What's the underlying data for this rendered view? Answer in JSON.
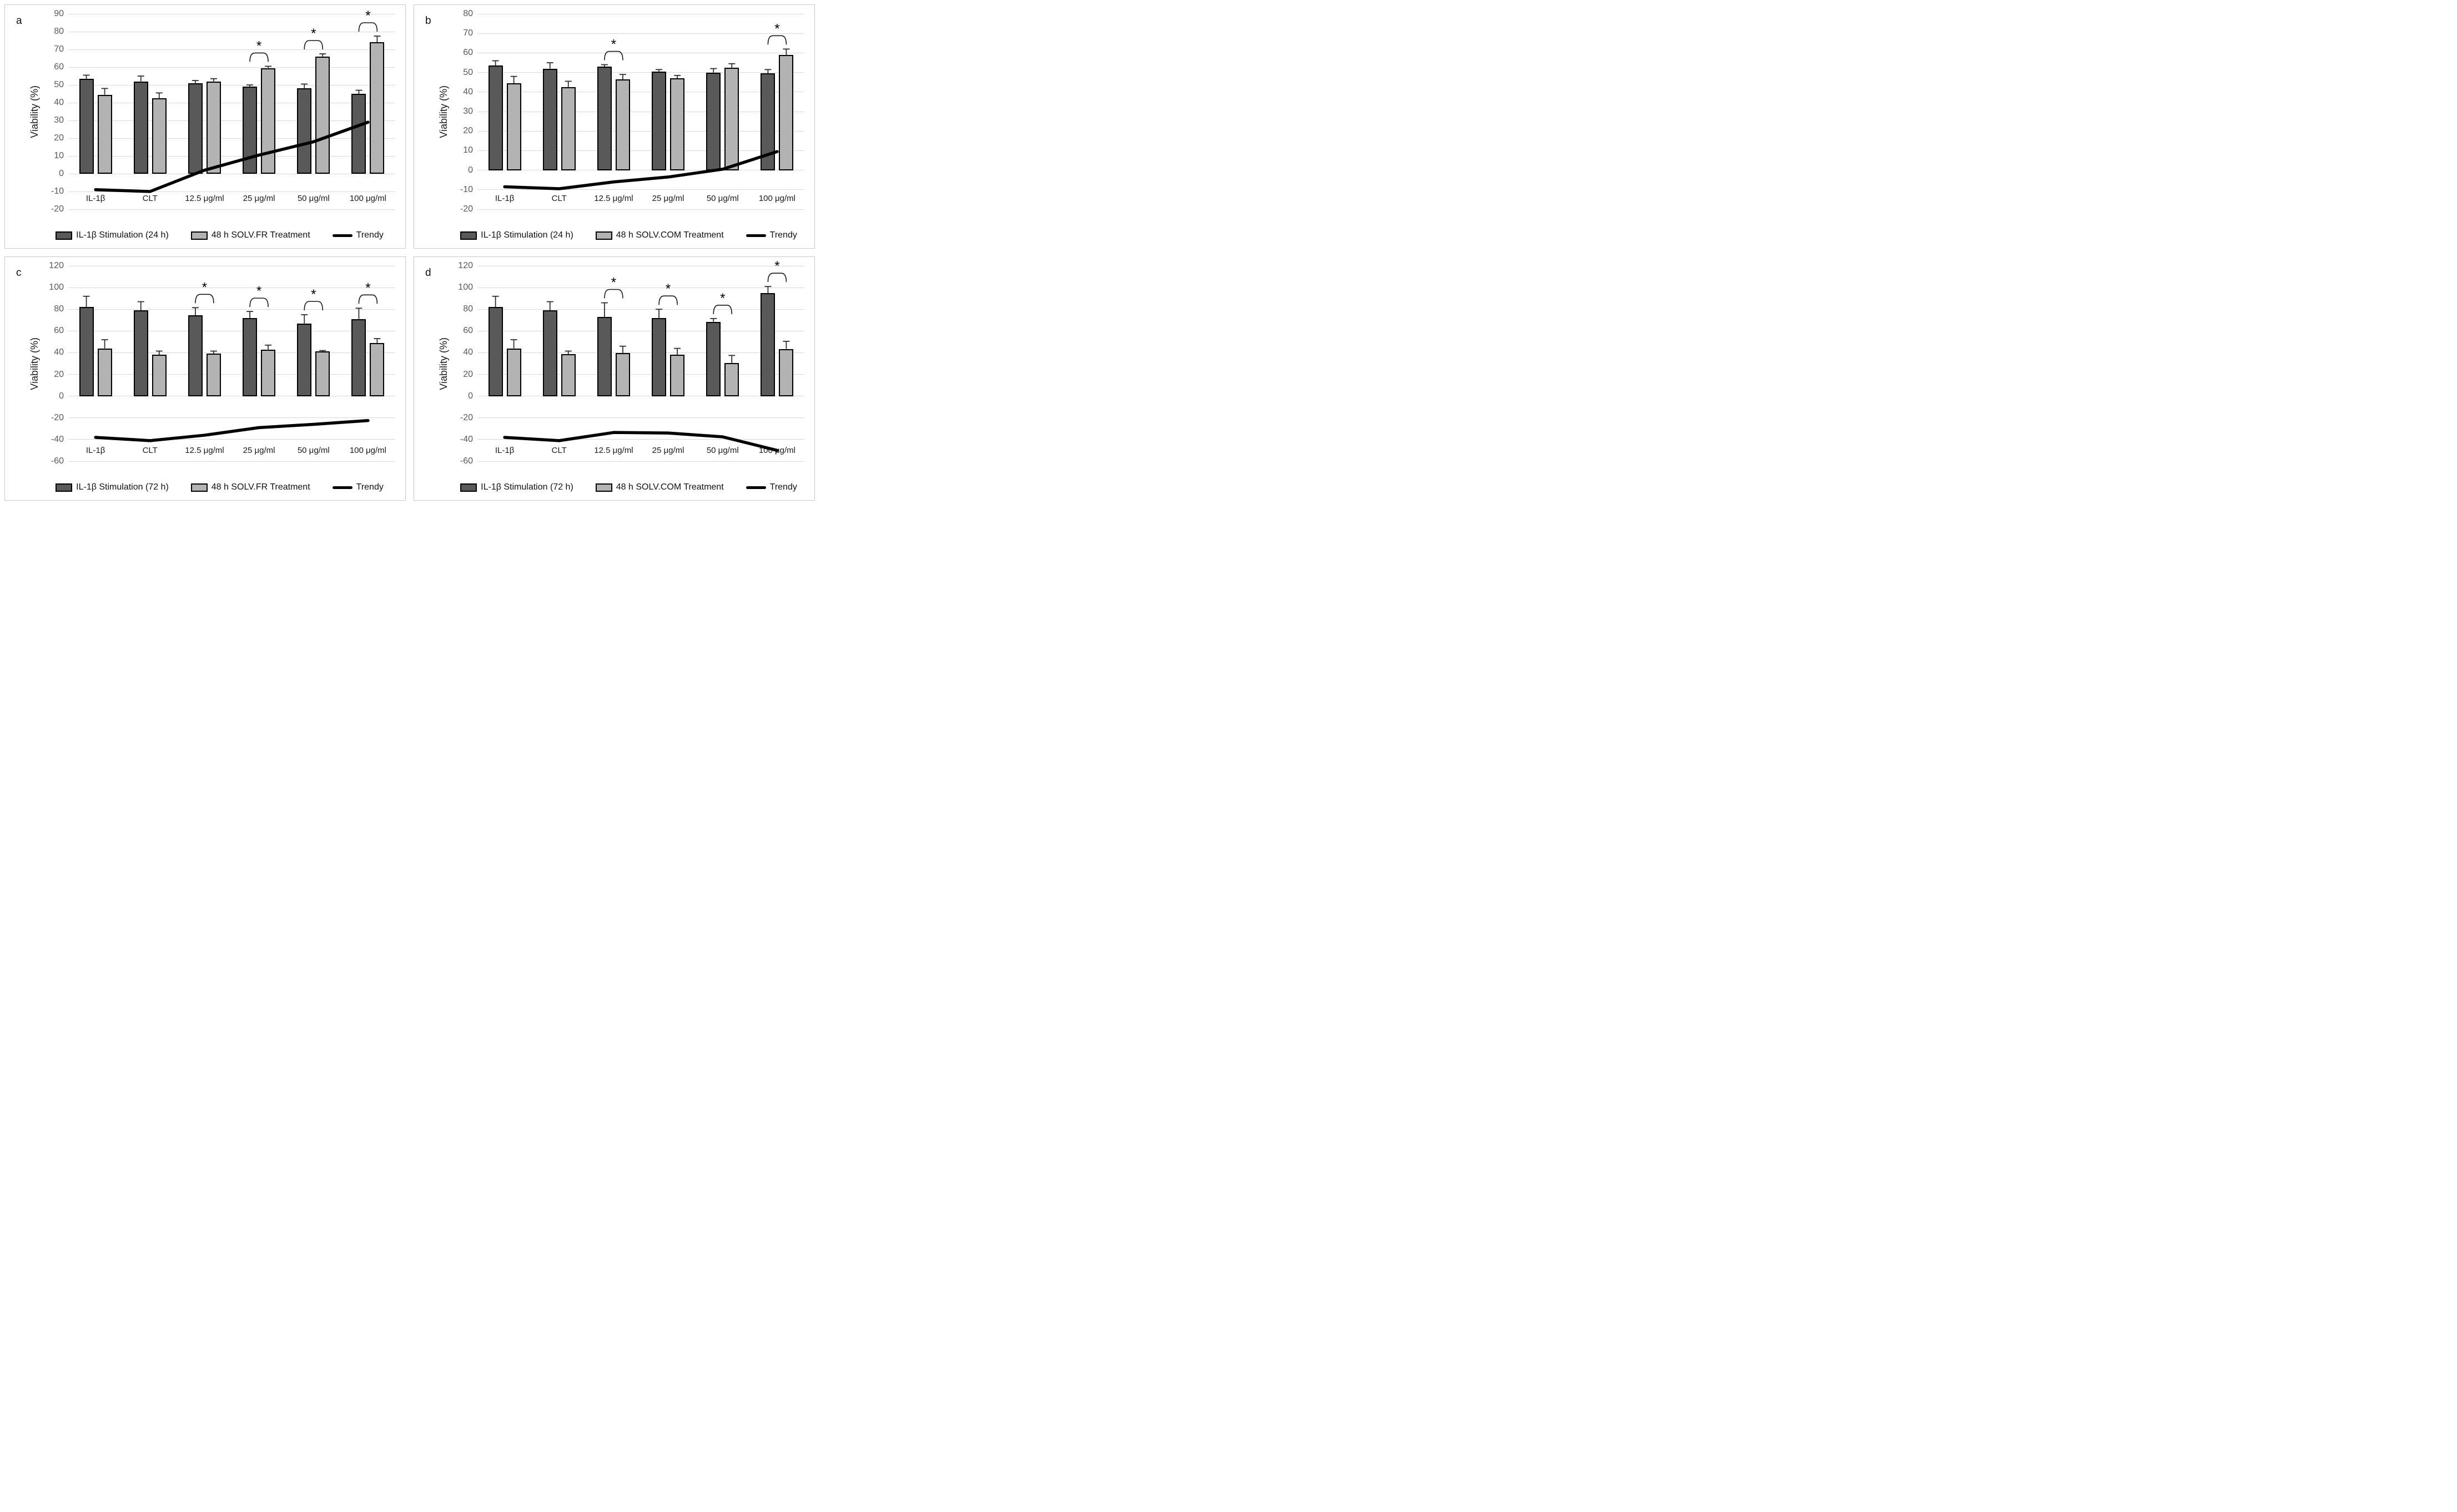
{
  "figure": {
    "background": "#ffffff",
    "panel_border_color": "#c9c9c9",
    "gridline_color": "#d9d9d9",
    "dark_bar_color": "#595959",
    "light_bar_color": "#b3b3b3",
    "trend_color": "#000000",
    "significance_marker": "*"
  },
  "chart_data": [
    {
      "type": "bar",
      "panel_label": "a",
      "ylabel": "Viability (%)",
      "ylim": [
        -20,
        90
      ],
      "ytick_step": 10,
      "grid": true,
      "legend_position": "bottom",
      "categories": [
        "IL-1β",
        "CLT",
        "12.5 μg/ml",
        "25 μg/ml",
        "50 μg/ml",
        "100 μg/ml"
      ],
      "series": [
        {
          "name": "IL-1β Stimulation (24 h)",
          "color": "#595959",
          "values": [
            53.5,
            52,
            51,
            49,
            48,
            45
          ],
          "errors": [
            2,
            3,
            1.5,
            1,
            2.5,
            2
          ]
        },
        {
          "name": "48 h SOLV.FR Treatment",
          "color": "#b3b3b3",
          "values": [
            44.5,
            42.5,
            52,
            59.5,
            66,
            74
          ],
          "errors": [
            3.5,
            3,
            1.5,
            1,
            1.5,
            3.5
          ]
        }
      ],
      "trend": {
        "name": "Trendy",
        "values": [
          -9,
          -10,
          2,
          10.5,
          18,
          29
        ]
      },
      "significance": [
        false,
        false,
        false,
        true,
        true,
        true
      ]
    },
    {
      "type": "bar",
      "panel_label": "b",
      "ylabel": "Viability (%)",
      "ylim": [
        -20,
        80
      ],
      "ytick_step": 10,
      "grid": true,
      "legend_position": "bottom",
      "categories": [
        "IL-1β",
        "CLT",
        "12.5 μg/ml",
        "25 μg/ml",
        "50 μg/ml",
        "100 μg/ml"
      ],
      "series": [
        {
          "name": "IL-1β Stimulation (24 h)",
          "color": "#595959",
          "values": [
            53.5,
            52,
            53,
            50.5,
            50,
            49.5
          ],
          "errors": [
            2.5,
            3,
            1,
            1,
            2,
            2
          ]
        },
        {
          "name": "48 h SOLV.COM Treatment",
          "color": "#b3b3b3",
          "values": [
            44.5,
            42.5,
            46.5,
            47,
            52.5,
            59
          ],
          "errors": [
            3.5,
            3,
            2.5,
            1.5,
            2,
            3
          ]
        }
      ],
      "trend": {
        "name": "Trendy",
        "values": [
          -8.5,
          -9.5,
          -6,
          -3.5,
          0.5,
          9.5
        ]
      },
      "significance": [
        false,
        false,
        true,
        false,
        false,
        true
      ]
    },
    {
      "type": "bar",
      "panel_label": "c",
      "ylabel": "Viability (%)",
      "ylim": [
        -60,
        120
      ],
      "ytick_step": 20,
      "grid": true,
      "legend_position": "bottom",
      "categories": [
        "IL-1β",
        "CLT",
        "12.5 μg/ml",
        "25 μg/ml",
        "50 μg/ml",
        "100 μg/ml"
      ],
      "series": [
        {
          "name": "IL-1β Stimulation (72 h)",
          "color": "#595959",
          "values": [
            82,
            79,
            74.5,
            72,
            67,
            71
          ],
          "errors": [
            10,
            8,
            7,
            6,
            8,
            10
          ]
        },
        {
          "name": "48 h SOLV.FR Treatment",
          "color": "#b3b3b3",
          "values": [
            44,
            38,
            39,
            43,
            41,
            49
          ],
          "errors": [
            8,
            3.5,
            2.5,
            4,
            1,
            4
          ]
        }
      ],
      "trend": {
        "name": "Trendy",
        "values": [
          -38,
          -41,
          -36,
          -29,
          -26,
          -22.5
        ]
      },
      "significance": [
        false,
        false,
        true,
        true,
        true,
        true
      ]
    },
    {
      "type": "bar",
      "panel_label": "d",
      "ylabel": "Viability (%)",
      "ylim": [
        -60,
        120
      ],
      "ytick_step": 20,
      "grid": true,
      "legend_position": "bottom",
      "categories": [
        "IL-1β",
        "CLT",
        "12.5 μg/ml",
        "25 μg/ml",
        "50 μg/ml",
        "100 μg/ml"
      ],
      "series": [
        {
          "name": "IL-1β Stimulation (72 h)",
          "color": "#595959",
          "values": [
            82,
            79,
            73,
            72,
            68.5,
            95
          ],
          "errors": [
            10,
            8,
            13,
            8,
            3,
            6
          ]
        },
        {
          "name": "48 h SOLV.COM Treatment",
          "color": "#b3b3b3",
          "values": [
            44,
            38.5,
            39.5,
            38,
            30.5,
            43.5
          ],
          "errors": [
            8,
            3,
            6.5,
            6,
            7,
            7
          ]
        }
      ],
      "trend": {
        "name": "Trendy",
        "values": [
          -38,
          -41,
          -33.5,
          -34,
          -37.5,
          -50
        ]
      },
      "significance": [
        false,
        false,
        true,
        true,
        true,
        true
      ]
    }
  ]
}
